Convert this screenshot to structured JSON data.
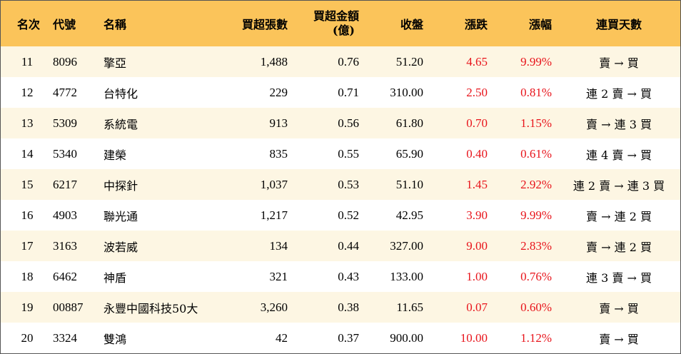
{
  "headers": {
    "rank": "名次",
    "code": "代號",
    "name": "名稱",
    "volume": "買超張數",
    "amount_line1": "買超金額",
    "amount_line2": "(億)",
    "close": "收盤",
    "change": "漲跌",
    "pct": "漲幅",
    "days": "連買天數"
  },
  "rows": [
    {
      "rank": "11",
      "code": "8096",
      "name": "擎亞",
      "volume": "1,488",
      "amount": "0.76",
      "close": "51.20",
      "change": "4.65",
      "pct": "9.99%",
      "days": "賣 → 買"
    },
    {
      "rank": "12",
      "code": "4772",
      "name": "台特化",
      "volume": "229",
      "amount": "0.71",
      "close": "310.00",
      "change": "2.50",
      "pct": "0.81%",
      "days": "連 2 賣 → 買"
    },
    {
      "rank": "13",
      "code": "5309",
      "name": "系統電",
      "volume": "913",
      "amount": "0.56",
      "close": "61.80",
      "change": "0.70",
      "pct": "1.15%",
      "days": "賣 → 連 3 買"
    },
    {
      "rank": "14",
      "code": "5340",
      "name": "建榮",
      "volume": "835",
      "amount": "0.55",
      "close": "65.90",
      "change": "0.40",
      "pct": "0.61%",
      "days": "連 4 賣 → 買"
    },
    {
      "rank": "15",
      "code": "6217",
      "name": "中探針",
      "volume": "1,037",
      "amount": "0.53",
      "close": "51.10",
      "change": "1.45",
      "pct": "2.92%",
      "days": "連 2 賣 → 連 3 買"
    },
    {
      "rank": "16",
      "code": "4903",
      "name": "聯光通",
      "volume": "1,217",
      "amount": "0.52",
      "close": "42.95",
      "change": "3.90",
      "pct": "9.99%",
      "days": "賣 → 連 2 買"
    },
    {
      "rank": "17",
      "code": "3163",
      "name": "波若威",
      "volume": "134",
      "amount": "0.44",
      "close": "327.00",
      "change": "9.00",
      "pct": "2.83%",
      "days": "賣 → 連 2 買"
    },
    {
      "rank": "18",
      "code": "6462",
      "name": "神盾",
      "volume": "321",
      "amount": "0.43",
      "close": "133.00",
      "change": "1.00",
      "pct": "0.76%",
      "days": "連 3 賣 → 買"
    },
    {
      "rank": "19",
      "code": "00887",
      "name": "永豐中國科技50大",
      "volume": "3,260",
      "amount": "0.38",
      "close": "11.65",
      "change": "0.07",
      "pct": "0.60%",
      "days": "賣 → 買"
    },
    {
      "rank": "20",
      "code": "3324",
      "name": "雙鴻",
      "volume": "42",
      "amount": "0.37",
      "close": "900.00",
      "change": "10.00",
      "pct": "1.12%",
      "days": "賣 → 買"
    }
  ],
  "colors": {
    "header_bg": "#fbc45a",
    "row_odd_bg": "#fdf6e3",
    "row_even_bg": "#ffffff",
    "positive_text": "#e8141b"
  }
}
